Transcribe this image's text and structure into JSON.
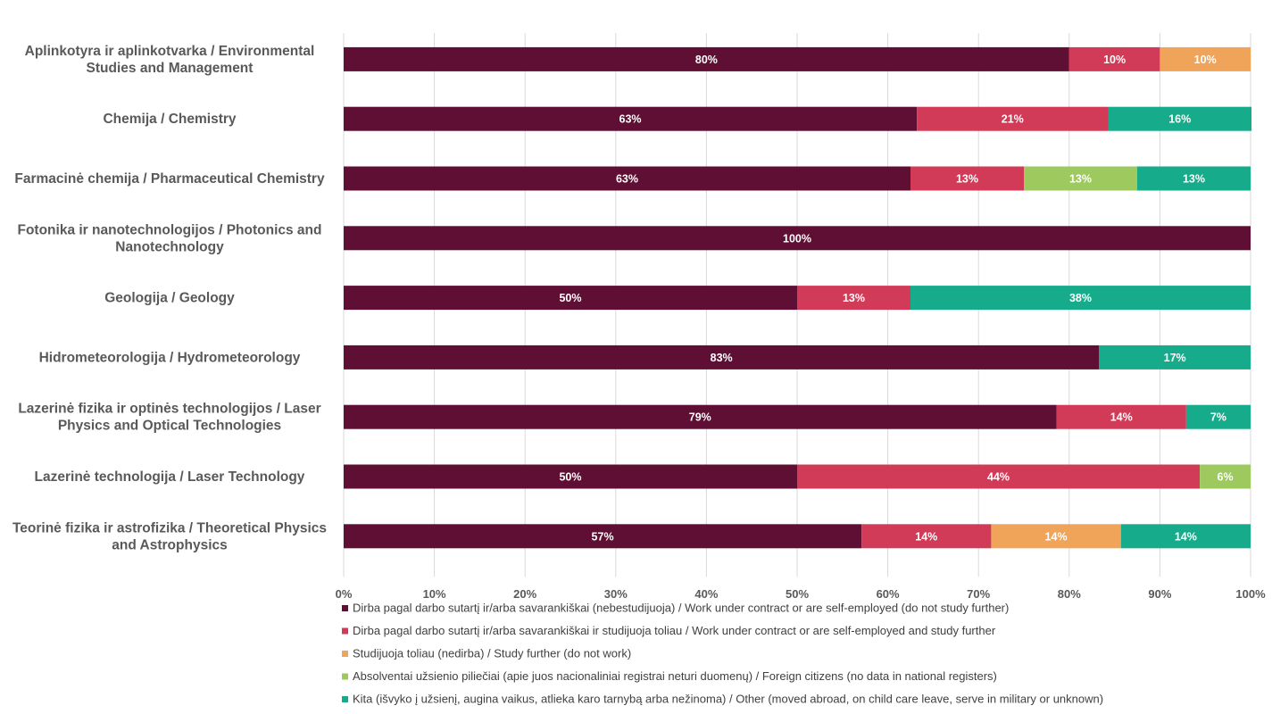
{
  "chart_data": {
    "type": "bar",
    "orientation": "horizontal",
    "stacked": true,
    "categories": [
      [
        "Aplinkotyra ir aplinkotvarka / Environmental",
        "Studies and Management"
      ],
      [
        "Chemija / Chemistry"
      ],
      [
        "Farmacinė chemija / Pharmaceutical Chemistry"
      ],
      [
        "Fotonika ir nanotechnologijos / Photonics and",
        "Nanotechnology"
      ],
      [
        "Geologija / Geology"
      ],
      [
        "Hidrometeorologija / Hydrometeorology"
      ],
      [
        "Lazerinė fizika ir optinės technologijos / Laser",
        "Physics and Optical Technologies"
      ],
      [
        "Lazerinė technologija / Laser Technology"
      ],
      [
        "Teorinė fizika ir astrofizika / Theoretical Physics",
        "and Astrophysics"
      ]
    ],
    "series": [
      {
        "name": "Dirba pagal darbo sutartį ir/arba savarankiškai (nebestudijuoja) / Work under contract or are self-employed (do not study further)",
        "color": "#5f0f33",
        "values": [
          80,
          63.2,
          62.5,
          100,
          50,
          83.3,
          78.6,
          50,
          57.1
        ],
        "labels": [
          "80%",
          "63%",
          "63%",
          "100%",
          "50%",
          "83%",
          "79%",
          "50%",
          "57%"
        ]
      },
      {
        "name": "Dirba pagal darbo sutartį ir/arba savarankiškai  ir studijuoja toliau / Work under contract or are self-employed and study further",
        "color": "#d23b57",
        "values": [
          10,
          21.1,
          12.5,
          0,
          12.5,
          0,
          14.3,
          44.4,
          14.3
        ],
        "labels": [
          "10%",
          "21%",
          "13%",
          "",
          "13%",
          "",
          "14%",
          "44%",
          "14%"
        ]
      },
      {
        "name": "Studijuoja toliau (nedirba) / Study further (do not work)",
        "color": "#f0a45a",
        "values": [
          10,
          0,
          0,
          0,
          0,
          0,
          0,
          0,
          14.3
        ],
        "labels": [
          "10%",
          "",
          "",
          "",
          "",
          "",
          "",
          "",
          "14%"
        ]
      },
      {
        "name": "Absolventai užsienio piliečiai (apie juos nacionaliniai registrai neturi duomenų) / Foreign citizens (no data in national registers)",
        "color": "#9dc95f",
        "values": [
          0,
          0,
          12.5,
          0,
          0,
          0,
          0,
          5.6,
          0
        ],
        "labels": [
          "",
          "",
          "13%",
          "",
          "",
          "",
          "",
          "6%",
          ""
        ]
      },
      {
        "name": "Kita (išvyko į užsienį, augina vaikus, atlieka karo tarnybą arba nežinoma) / Other (moved abroad, on child care leave, serve in military or unknown)",
        "color": "#16ab8a",
        "values": [
          0,
          15.8,
          12.5,
          0,
          37.5,
          16.7,
          7.1,
          0,
          14.3
        ],
        "labels": [
          "",
          "16%",
          "13%",
          "",
          "38%",
          "17%",
          "7%",
          "",
          "14%"
        ]
      }
    ],
    "xticks": [
      "0%",
      "10%",
      "20%",
      "30%",
      "40%",
      "50%",
      "60%",
      "70%",
      "80%",
      "90%",
      "100%"
    ],
    "xlim": [
      0,
      100
    ],
    "grid": "vertical",
    "legend": "bottom"
  }
}
